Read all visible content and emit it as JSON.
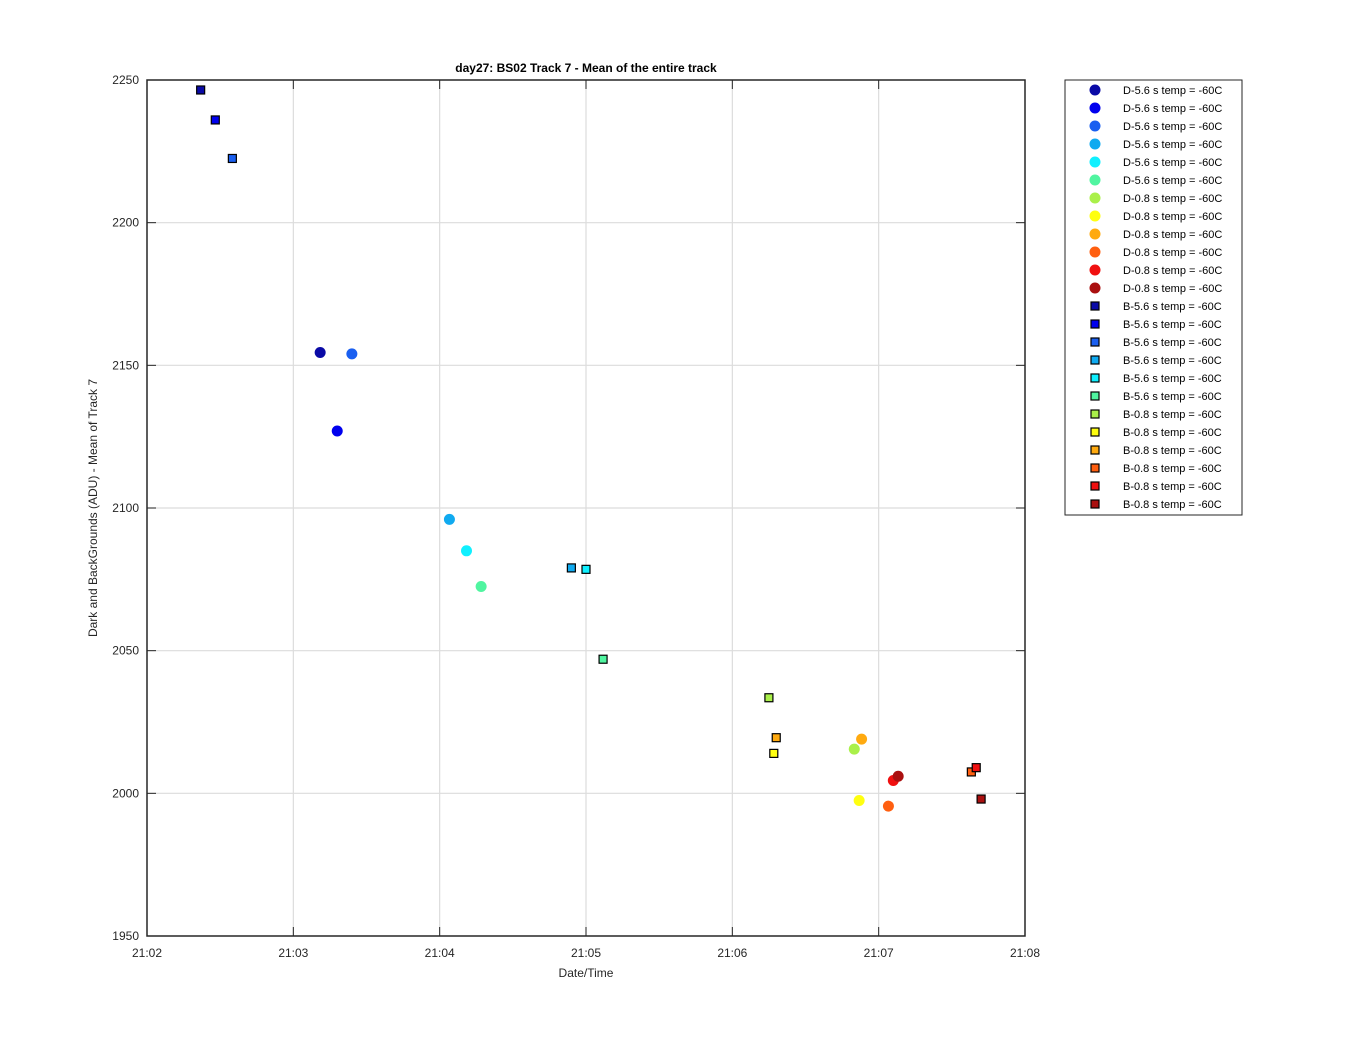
{
  "chart_data": {
    "type": "scatter",
    "title": "day27: BS02  Track 7 - Mean of the entire track",
    "xlabel": "Date/Time",
    "ylabel": "Dark and BackGrounds (ADU) - Mean of Track 7",
    "x_ticks": [
      "21:02",
      "21:03",
      "21:04",
      "21:05",
      "21:06",
      "21:07",
      "21:08"
    ],
    "xlim": [
      "21:02:00",
      "21:08:00"
    ],
    "ylim": [
      1950,
      2250
    ],
    "y_ticks": [
      1950,
      2000,
      2050,
      2100,
      2150,
      2200,
      2250
    ],
    "grid": true,
    "legend_placement": "outside-top-right",
    "series": [
      {
        "name": "D-5.6 s temp = -60C",
        "marker": "circle",
        "color": "#0a0aa6",
        "points": [
          {
            "x": "21:03:11",
            "y": 2154.5
          }
        ]
      },
      {
        "name": "D-5.6 s temp = -60C",
        "marker": "circle",
        "color": "#0000ee",
        "points": [
          {
            "x": "21:03:18",
            "y": 2127
          }
        ]
      },
      {
        "name": "D-5.6 s temp = -60C",
        "marker": "circle",
        "color": "#1a5ff0",
        "points": [
          {
            "x": "21:03:24",
            "y": 2154
          }
        ]
      },
      {
        "name": "D-5.6 s temp = -60C",
        "marker": "circle",
        "color": "#10aaf0",
        "points": [
          {
            "x": "21:04:04",
            "y": 2096
          }
        ]
      },
      {
        "name": "D-5.6 s temp = -60C",
        "marker": "circle",
        "color": "#10f0ff",
        "points": [
          {
            "x": "21:04:11",
            "y": 2085
          }
        ]
      },
      {
        "name": "D-5.6 s temp = -60C",
        "marker": "circle",
        "color": "#50f5a0",
        "points": [
          {
            "x": "21:04:17",
            "y": 2072.5
          }
        ]
      },
      {
        "name": "D-0.8 s temp = -60C",
        "marker": "circle",
        "color": "#aaf04a",
        "points": [
          {
            "x": "21:06:50",
            "y": 2015.5
          }
        ]
      },
      {
        "name": "D-0.8 s temp = -60C",
        "marker": "circle",
        "color": "#ffff10",
        "points": [
          {
            "x": "21:06:52",
            "y": 1997.5
          }
        ]
      },
      {
        "name": "D-0.8 s temp = -60C",
        "marker": "circle",
        "color": "#ffaa10",
        "points": [
          {
            "x": "21:06:53",
            "y": 2019
          }
        ]
      },
      {
        "name": "D-0.8 s temp = -60C",
        "marker": "circle",
        "color": "#ff5f10",
        "points": [
          {
            "x": "21:07:04",
            "y": 1995.5
          }
        ]
      },
      {
        "name": "D-0.8 s temp = -60C",
        "marker": "circle",
        "color": "#f01010",
        "points": [
          {
            "x": "21:07:06",
            "y": 2004.5
          }
        ]
      },
      {
        "name": "D-0.8 s temp = -60C",
        "marker": "circle",
        "color": "#aa1010",
        "points": [
          {
            "x": "21:07:08",
            "y": 2006
          }
        ]
      },
      {
        "name": "B-5.6 s temp = -60C",
        "marker": "square",
        "color": "#0a0aa6",
        "points": [
          {
            "x": "21:02:22",
            "y": 2246.5
          }
        ]
      },
      {
        "name": "B-5.6 s temp = -60C",
        "marker": "square",
        "color": "#0000ee",
        "points": [
          {
            "x": "21:02:28",
            "y": 2236
          }
        ]
      },
      {
        "name": "B-5.6 s temp = -60C",
        "marker": "square",
        "color": "#1a5ff0",
        "points": [
          {
            "x": "21:02:35",
            "y": 2222.5
          }
        ]
      },
      {
        "name": "B-5.6 s temp = -60C",
        "marker": "square",
        "color": "#10aaf0",
        "points": [
          {
            "x": "21:04:54",
            "y": 2079
          }
        ]
      },
      {
        "name": "B-5.6 s temp = -60C",
        "marker": "square",
        "color": "#10f0ff",
        "points": [
          {
            "x": "21:05:00",
            "y": 2078.5
          }
        ]
      },
      {
        "name": "B-5.6 s temp = -60C",
        "marker": "square",
        "color": "#50f5a0",
        "points": [
          {
            "x": "21:05:07",
            "y": 2047
          }
        ]
      },
      {
        "name": "B-0.8 s temp = -60C",
        "marker": "square",
        "color": "#aaf04a",
        "points": [
          {
            "x": "21:06:15",
            "y": 2033.5
          }
        ]
      },
      {
        "name": "B-0.8 s temp = -60C",
        "marker": "square",
        "color": "#ffff10",
        "points": [
          {
            "x": "21:06:17",
            "y": 2014
          }
        ]
      },
      {
        "name": "B-0.8 s temp = -60C",
        "marker": "square",
        "color": "#ffaa10",
        "points": [
          {
            "x": "21:06:18",
            "y": 2019.5
          }
        ]
      },
      {
        "name": "B-0.8 s temp = -60C",
        "marker": "square",
        "color": "#ff5f10",
        "points": [
          {
            "x": "21:07:38",
            "y": 2007.5
          }
        ]
      },
      {
        "name": "B-0.8 s temp = -60C",
        "marker": "square",
        "color": "#f01010",
        "points": [
          {
            "x": "21:07:40",
            "y": 2009
          }
        ]
      },
      {
        "name": "B-0.8 s temp = -60C",
        "marker": "square",
        "color": "#aa1010",
        "points": [
          {
            "x": "21:07:42",
            "y": 1998
          }
        ]
      }
    ]
  }
}
